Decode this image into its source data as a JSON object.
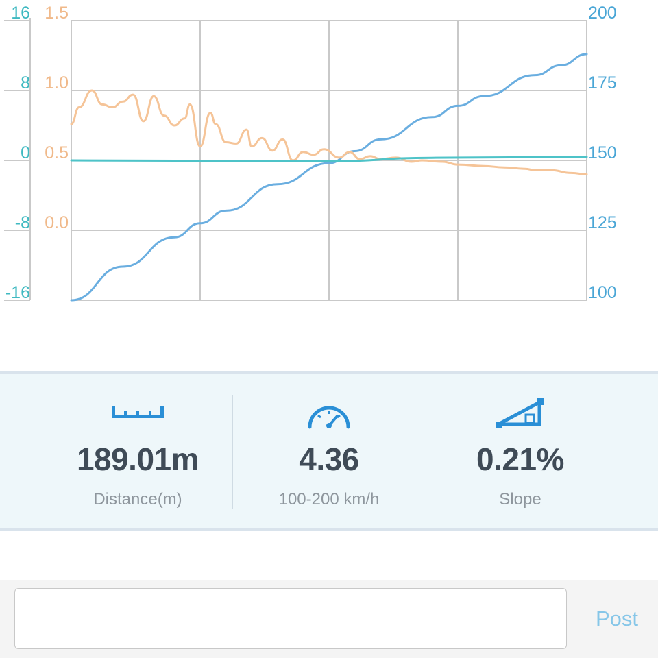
{
  "colors": {
    "grid": "#c9c9c9",
    "speed_line": "#6aaee0",
    "accel_line": "#f5c498",
    "slope_line": "#4ec3c8",
    "left_axis_teal": "#3fb9c1",
    "left_axis_orange": "#f0b98a",
    "right_axis": "#4aa6d6",
    "icon_blue": "#2a8fd6",
    "value_text": "#3f4b57",
    "label_text": "#8e969d",
    "post_text": "#86c6e8"
  },
  "chart_data": {
    "type": "line",
    "xlim": [
      0,
      100
    ],
    "axes": {
      "left_outer": {
        "ticks": [
          "16",
          "8",
          "0",
          "-8",
          "-16"
        ],
        "ylim": [
          -16,
          16
        ]
      },
      "left_inner": {
        "ticks": [
          "1.5",
          "1.0",
          "0.5",
          "0.0"
        ],
        "ylim": [
          -0.5,
          1.5
        ]
      },
      "right": {
        "ticks": [
          "200",
          "175",
          "150",
          "125",
          "100"
        ],
        "ylim": [
          100,
          200
        ]
      }
    },
    "grid": true,
    "series": [
      {
        "axis": "right",
        "color": "speed_line",
        "points": [
          [
            0,
            100
          ],
          [
            10,
            112
          ],
          [
            20,
            122.5
          ],
          [
            25,
            127.5
          ],
          [
            30,
            132
          ],
          [
            40,
            141.5
          ],
          [
            50,
            149
          ],
          [
            55,
            153.3
          ],
          [
            60,
            157.5
          ],
          [
            70,
            165.5
          ],
          [
            75,
            169.5
          ],
          [
            80,
            173
          ],
          [
            90,
            180.5
          ],
          [
            95,
            184
          ],
          [
            100,
            188
          ]
        ]
      },
      {
        "axis": "left_inner",
        "color": "accel_line",
        "points": [
          [
            0,
            0.76
          ],
          [
            1.5,
            0.88
          ],
          [
            4,
            1.0
          ],
          [
            6,
            0.9
          ],
          [
            8,
            0.88
          ],
          [
            10,
            0.92
          ],
          [
            12,
            0.97
          ],
          [
            14,
            0.78
          ],
          [
            16,
            0.96
          ],
          [
            18,
            0.82
          ],
          [
            20,
            0.75
          ],
          [
            22,
            0.8
          ],
          [
            23,
            0.9
          ],
          [
            25,
            0.6
          ],
          [
            27,
            0.84
          ],
          [
            28,
            0.76
          ],
          [
            30,
            0.63
          ],
          [
            32,
            0.62
          ],
          [
            34,
            0.72
          ],
          [
            35,
            0.6
          ],
          [
            37,
            0.66
          ],
          [
            39,
            0.57
          ],
          [
            41,
            0.65
          ],
          [
            43,
            0.5
          ],
          [
            45,
            0.56
          ],
          [
            47,
            0.54
          ],
          [
            49,
            0.58
          ],
          [
            52,
            0.52
          ],
          [
            54,
            0.56
          ],
          [
            56,
            0.51
          ],
          [
            58,
            0.53
          ],
          [
            60,
            0.51
          ],
          [
            63,
            0.52
          ],
          [
            66,
            0.49
          ],
          [
            68,
            0.5
          ],
          [
            72,
            0.49
          ],
          [
            75,
            0.47
          ],
          [
            80,
            0.46
          ],
          [
            84,
            0.45
          ],
          [
            88,
            0.44
          ],
          [
            90,
            0.43
          ],
          [
            93,
            0.43
          ],
          [
            97,
            0.41
          ],
          [
            100,
            0.4
          ]
        ]
      },
      {
        "axis": "left_outer",
        "color": "slope_line",
        "points": [
          [
            0,
            0.0
          ],
          [
            50,
            -0.1
          ],
          [
            70,
            0.3
          ],
          [
            100,
            0.4
          ]
        ]
      }
    ]
  },
  "stats": [
    {
      "icon": "ruler-icon",
      "value": "189.01m",
      "label": "Distance(m)"
    },
    {
      "icon": "speedometer-icon",
      "value": "4.36",
      "label": "100-200 km/h"
    },
    {
      "icon": "slope-icon",
      "value": "0.21%",
      "label": "Slope"
    }
  ],
  "post": {
    "input_value": "",
    "input_placeholder": "",
    "button_label": "Post"
  }
}
